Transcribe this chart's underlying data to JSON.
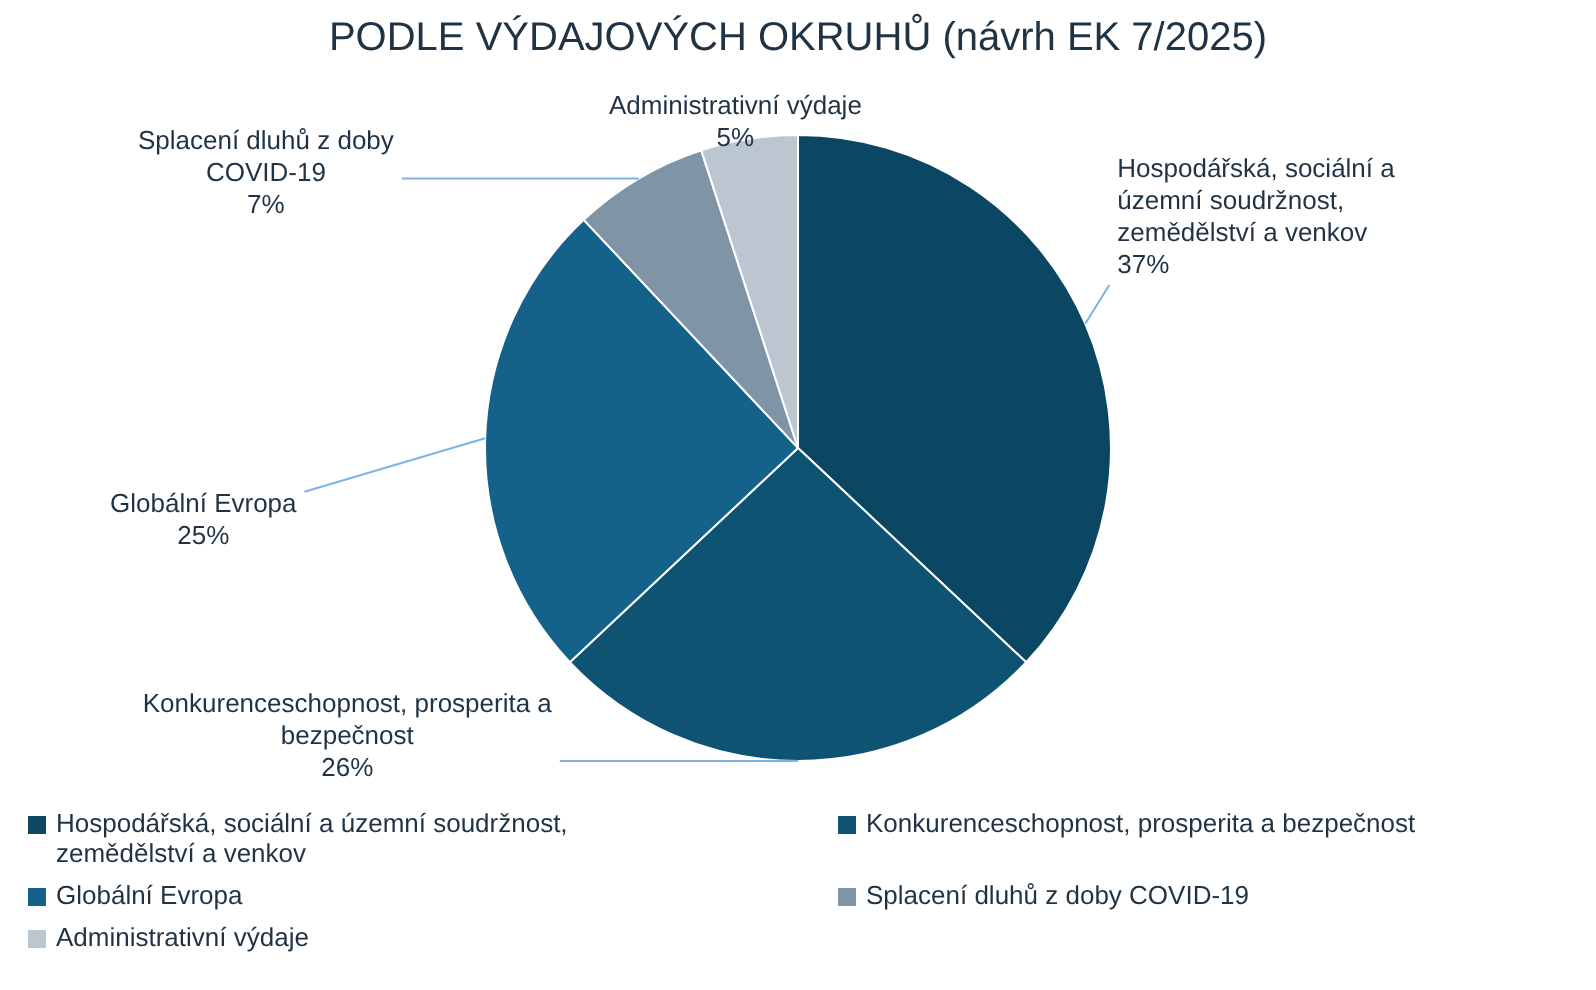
{
  "chart_data": {
    "type": "pie",
    "title": "PODLE VÝDAJOVÝCH OKRUHŮ (návrh EK 7/2025)",
    "categories": [
      "Hospodářská, sociální a územní soudržnost, zemědělství a venkov",
      "Konkurenceschopnost, prosperita a bezpečnost",
      "Globální Evropa",
      "Splacení dluhů z doby COVID-19",
      "Administrativní výdaje"
    ],
    "values": [
      37,
      26,
      25,
      7,
      5
    ],
    "value_labels": [
      "37%",
      "26%",
      "25%",
      "7%",
      "5%"
    ],
    "colors": [
      "#0b4762",
      "#0f5372",
      "#14618a",
      "#7f95a6",
      "#bcc6d0"
    ],
    "legend": "bottom"
  }
}
